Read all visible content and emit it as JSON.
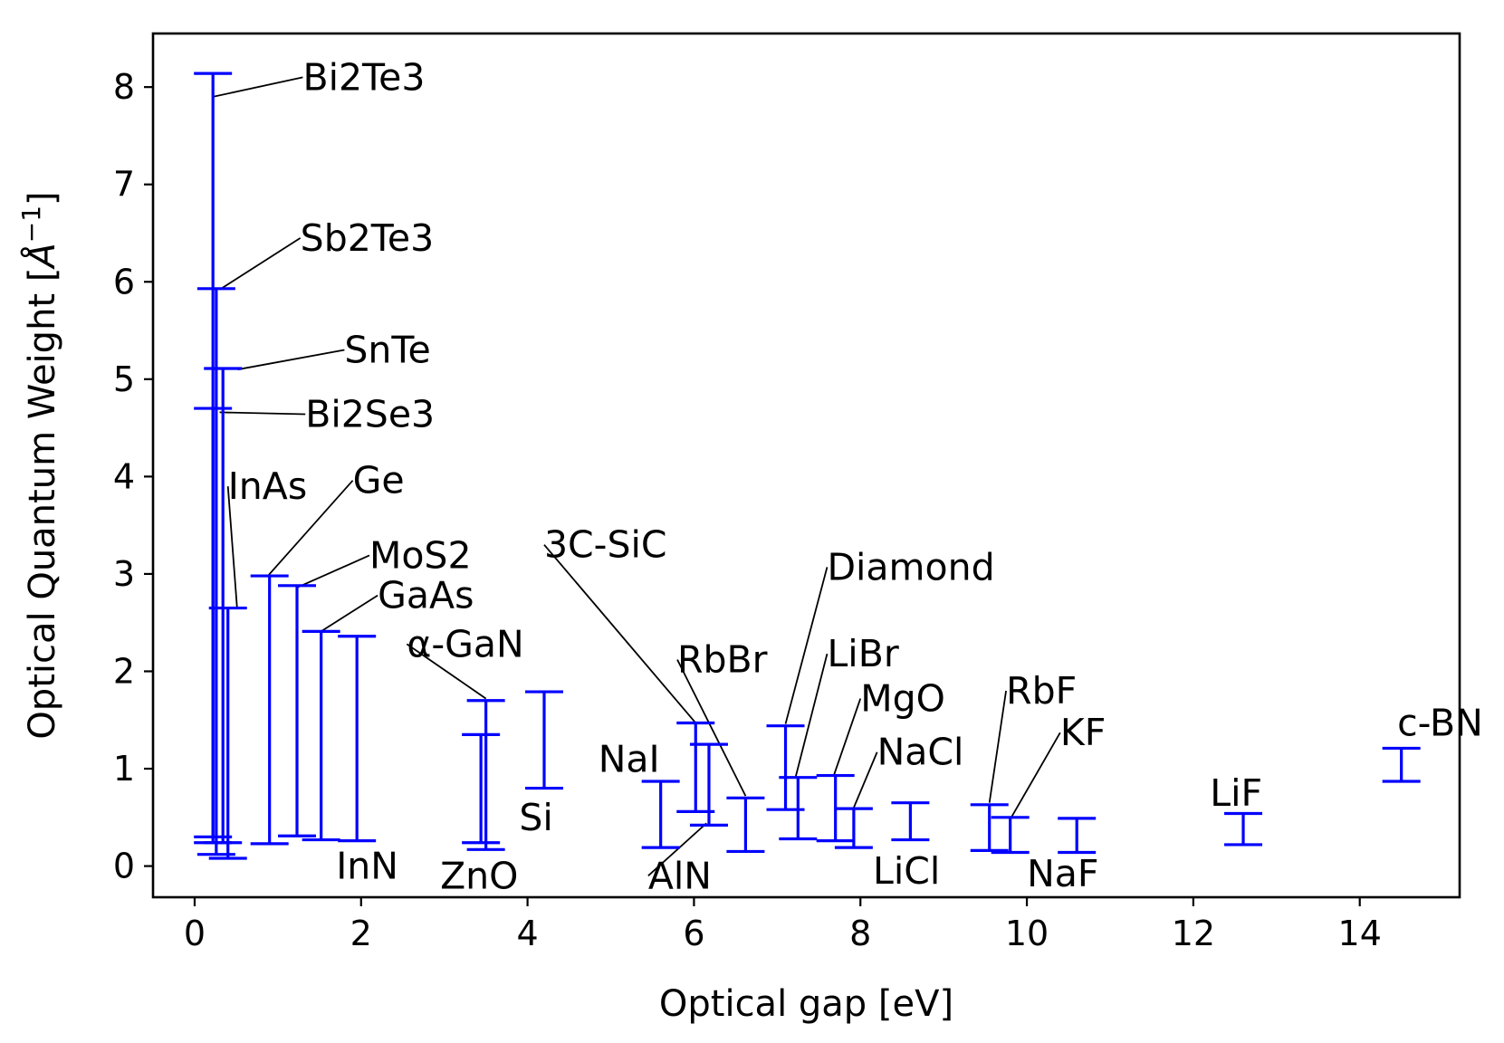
{
  "chart_data": {
    "type": "errorbar",
    "title": "",
    "xlabel": "Optical gap [eV]",
    "ylabel_main": "Optical Quantum Weight  [",
    "ylabel_unit": "Å",
    "ylabel_sup": "−1",
    "ylabel_end": "]",
    "xlim": [
      -0.5,
      15.2
    ],
    "ylim": [
      -0.32,
      8.55
    ],
    "xticks": [
      0,
      2,
      4,
      6,
      8,
      10,
      12,
      14
    ],
    "yticks": [
      0,
      1,
      2,
      3,
      4,
      5,
      6,
      7,
      8
    ],
    "color": "#0000ff",
    "series": [
      {
        "name": "Bi2Te3",
        "x": 0.22,
        "low": 0.3,
        "high": 8.14
      },
      {
        "name": "Sb2Te3",
        "x": 0.26,
        "low": 0.12,
        "high": 5.93
      },
      {
        "name": "SnTe",
        "x": 0.34,
        "low": 0.24,
        "high": 5.11
      },
      {
        "name": "Bi2Se3",
        "x": 0.22,
        "low": 0.24,
        "high": 4.7
      },
      {
        "name": "InAs",
        "x": 0.4,
        "low": 0.08,
        "high": 2.65
      },
      {
        "name": "Ge",
        "x": 0.9,
        "low": 0.23,
        "high": 2.98
      },
      {
        "name": "MoS2",
        "x": 1.23,
        "low": 0.31,
        "high": 2.88
      },
      {
        "name": "GaAs",
        "x": 1.52,
        "low": 0.27,
        "high": 2.41
      },
      {
        "name": "InN",
        "x": 1.95,
        "low": 0.26,
        "high": 2.36
      },
      {
        "name": "α-GaN",
        "x": 3.5,
        "low": 0.17,
        "high": 1.7
      },
      {
        "name": "ZnO",
        "x": 3.44,
        "low": 0.24,
        "high": 1.35
      },
      {
        "name": "Si",
        "x": 4.2,
        "low": 0.8,
        "high": 1.79
      },
      {
        "name": "NaI",
        "x": 5.6,
        "low": 0.19,
        "high": 0.87
      },
      {
        "name": "3C-SiC",
        "x": 6.02,
        "low": 0.56,
        "high": 1.47
      },
      {
        "name": "AlN",
        "x": 6.18,
        "low": 0.42,
        "high": 1.25
      },
      {
        "name": "RbBr",
        "x": 6.62,
        "low": 0.15,
        "high": 0.7
      },
      {
        "name": "Diamond",
        "x": 7.1,
        "low": 0.58,
        "high": 1.44
      },
      {
        "name": "LiBr",
        "x": 7.25,
        "low": 0.28,
        "high": 0.91
      },
      {
        "name": "MgO",
        "x": 7.7,
        "low": 0.26,
        "high": 0.93
      },
      {
        "name": "NaCl",
        "x": 7.92,
        "low": 0.19,
        "high": 0.59
      },
      {
        "name": "LiCl",
        "x": 8.6,
        "low": 0.27,
        "high": 0.65
      },
      {
        "name": "RbF",
        "x": 9.55,
        "low": 0.16,
        "high": 0.63
      },
      {
        "name": "KF",
        "x": 9.8,
        "low": 0.14,
        "high": 0.5
      },
      {
        "name": "NaF",
        "x": 10.6,
        "low": 0.14,
        "high": 0.49
      },
      {
        "name": "LiF",
        "x": 12.6,
        "low": 0.22,
        "high": 0.54
      },
      {
        "name": "c-BN",
        "x": 14.5,
        "low": 0.87,
        "high": 1.21
      }
    ],
    "annotations": [
      {
        "name": "Bi2Te3",
        "tx": 1.3,
        "ty": 8.1,
        "ax": 0.22,
        "ay": 7.9
      },
      {
        "name": "Sb2Te3",
        "tx": 1.27,
        "ty": 6.45,
        "ax": 0.3,
        "ay": 5.92
      },
      {
        "name": "SnTe",
        "tx": 1.8,
        "ty": 5.3,
        "ax": 0.52,
        "ay": 5.1
      },
      {
        "name": "Bi2Se3",
        "tx": 1.33,
        "ty": 4.64,
        "ax": 0.3,
        "ay": 4.66
      },
      {
        "name": "InAs",
        "tx": 0.4,
        "ty": 3.9,
        "ax": 0.51,
        "ay": 2.65
      },
      {
        "name": "Ge",
        "tx": 1.9,
        "ty": 3.96,
        "ax": 0.88,
        "ay": 2.98
      },
      {
        "name": "MoS2",
        "tx": 2.1,
        "ty": 3.19,
        "ax": 1.23,
        "ay": 2.86
      },
      {
        "name": "GaAs",
        "tx": 2.2,
        "ty": 2.78,
        "ax": 1.5,
        "ay": 2.4
      },
      {
        "name": "InN",
        "tx": 1.7,
        "ty": 0.0
      },
      {
        "name": "α-GaN",
        "tx": 2.55,
        "ty": 2.28,
        "ax": 3.5,
        "ay": 1.72
      },
      {
        "name": "ZnO",
        "tx": 2.95,
        "ty": -0.1
      },
      {
        "name": "Si",
        "tx": 3.9,
        "ty": 0.5
      },
      {
        "name": "NaI",
        "tx": 4.85,
        "ty": 1.1
      },
      {
        "name": "3C-SiC",
        "tx": 4.2,
        "ty": 3.3,
        "ax": 6.02,
        "ay": 1.47
      },
      {
        "name": "AlN",
        "tx": 5.45,
        "ty": -0.1,
        "ax": 6.15,
        "ay": 0.44
      },
      {
        "name": "RbBr",
        "tx": 5.8,
        "ty": 2.12,
        "ax": 6.62,
        "ay": 0.72
      },
      {
        "name": "Diamond",
        "tx": 7.6,
        "ty": 3.07,
        "ax": 7.1,
        "ay": 1.46
      },
      {
        "name": "LiBr",
        "tx": 7.6,
        "ty": 2.18,
        "ax": 7.22,
        "ay": 0.91
      },
      {
        "name": "MgO",
        "tx": 8.0,
        "ty": 1.72,
        "ax": 7.68,
        "ay": 0.93
      },
      {
        "name": "NaCl",
        "tx": 8.2,
        "ty": 1.17,
        "ax": 7.92,
        "ay": 0.6
      },
      {
        "name": "LiCl",
        "tx": 8.15,
        "ty": -0.05
      },
      {
        "name": "RbF",
        "tx": 9.75,
        "ty": 1.8,
        "ax": 9.55,
        "ay": 0.65
      },
      {
        "name": "KF",
        "tx": 10.4,
        "ty": 1.37,
        "ax": 9.82,
        "ay": 0.51
      },
      {
        "name": "NaF",
        "tx": 10.0,
        "ty": -0.08
      },
      {
        "name": "LiF",
        "tx": 12.2,
        "ty": 0.75
      },
      {
        "name": "c-BN",
        "tx": 14.45,
        "ty": 1.47
      }
    ]
  }
}
